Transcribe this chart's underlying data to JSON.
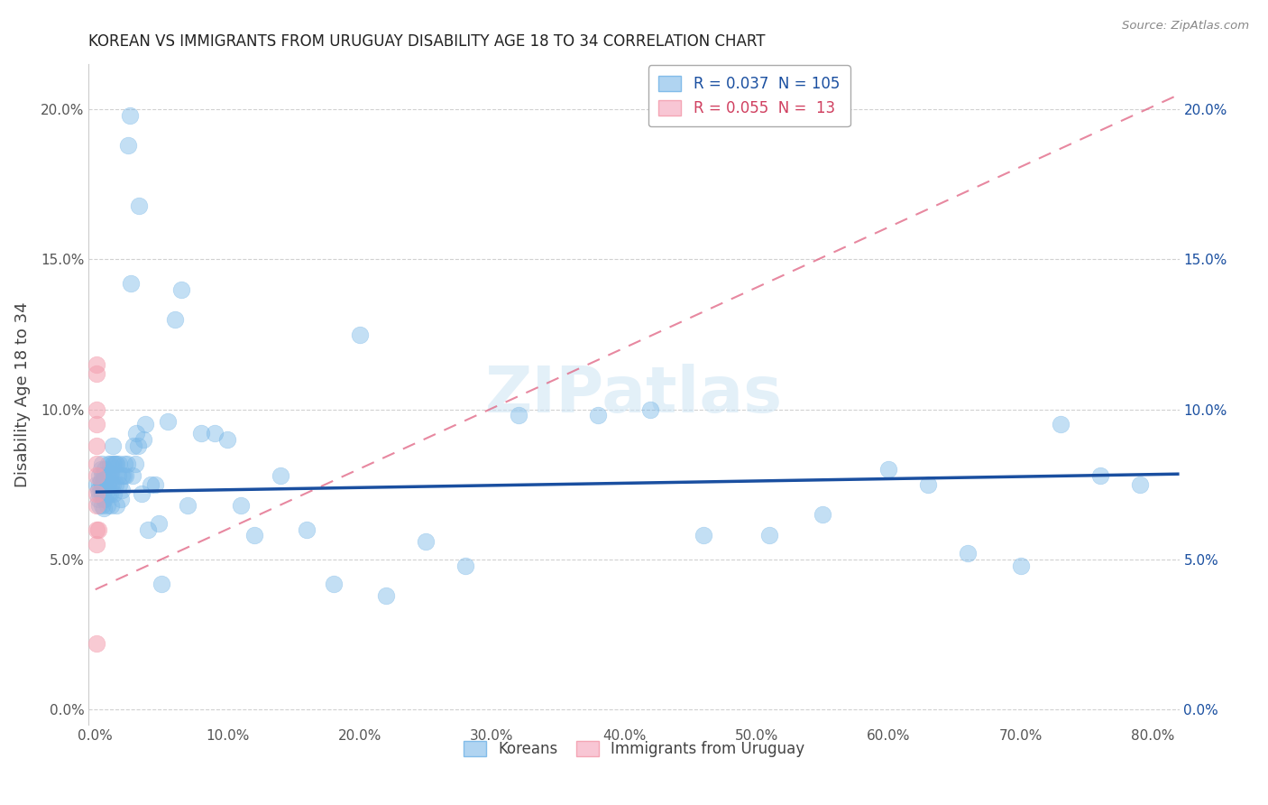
{
  "title": "KOREAN VS IMMIGRANTS FROM URUGUAY DISABILITY AGE 18 TO 34 CORRELATION CHART",
  "source": "Source: ZipAtlas.com",
  "xlim": [
    0.0,
    0.82
  ],
  "ylim": [
    -0.005,
    0.215
  ],
  "ylabel": "Disability Age 18 to 34",
  "korean_color": "#7ab8e8",
  "uruguay_color": "#f4a0b0",
  "korean_line_color": "#1a4fa0",
  "uruguay_line_color": "#e06080",
  "korean_R": 0.037,
  "uruguay_R": 0.055,
  "korean_N": 105,
  "uruguay_N": 13,
  "korean_x": [
    0.001,
    0.002,
    0.002,
    0.003,
    0.003,
    0.003,
    0.003,
    0.004,
    0.004,
    0.004,
    0.005,
    0.005,
    0.005,
    0.005,
    0.005,
    0.006,
    0.006,
    0.006,
    0.006,
    0.006,
    0.007,
    0.007,
    0.007,
    0.007,
    0.008,
    0.008,
    0.008,
    0.009,
    0.009,
    0.009,
    0.01,
    0.01,
    0.01,
    0.01,
    0.011,
    0.011,
    0.011,
    0.012,
    0.012,
    0.012,
    0.013,
    0.013,
    0.013,
    0.014,
    0.014,
    0.015,
    0.015,
    0.016,
    0.016,
    0.017,
    0.018,
    0.018,
    0.019,
    0.02,
    0.02,
    0.021,
    0.022,
    0.023,
    0.024,
    0.025,
    0.026,
    0.027,
    0.028,
    0.029,
    0.03,
    0.031,
    0.032,
    0.033,
    0.035,
    0.036,
    0.038,
    0.04,
    0.042,
    0.045,
    0.048,
    0.05,
    0.055,
    0.06,
    0.065,
    0.07,
    0.08,
    0.09,
    0.1,
    0.11,
    0.12,
    0.14,
    0.16,
    0.18,
    0.2,
    0.22,
    0.25,
    0.28,
    0.32,
    0.38,
    0.42,
    0.46,
    0.51,
    0.55,
    0.6,
    0.63,
    0.66,
    0.7,
    0.73,
    0.76,
    0.79
  ],
  "korean_y": [
    0.075,
    0.073,
    0.07,
    0.078,
    0.075,
    0.072,
    0.068,
    0.08,
    0.076,
    0.073,
    0.082,
    0.078,
    0.075,
    0.072,
    0.068,
    0.078,
    0.075,
    0.073,
    0.07,
    0.067,
    0.08,
    0.077,
    0.073,
    0.07,
    0.078,
    0.075,
    0.072,
    0.078,
    0.075,
    0.068,
    0.082,
    0.079,
    0.075,
    0.072,
    0.082,
    0.078,
    0.072,
    0.079,
    0.075,
    0.068,
    0.088,
    0.082,
    0.075,
    0.082,
    0.072,
    0.082,
    0.075,
    0.082,
    0.068,
    0.078,
    0.082,
    0.075,
    0.07,
    0.078,
    0.073,
    0.078,
    0.082,
    0.078,
    0.082,
    0.188,
    0.198,
    0.142,
    0.078,
    0.088,
    0.082,
    0.092,
    0.088,
    0.168,
    0.072,
    0.09,
    0.095,
    0.06,
    0.075,
    0.075,
    0.062,
    0.042,
    0.096,
    0.13,
    0.14,
    0.068,
    0.092,
    0.092,
    0.09,
    0.068,
    0.058,
    0.078,
    0.06,
    0.042,
    0.125,
    0.038,
    0.056,
    0.048,
    0.098,
    0.098,
    0.1,
    0.058,
    0.058,
    0.065,
    0.08,
    0.075,
    0.052,
    0.048,
    0.095,
    0.078,
    0.075
  ],
  "uruguay_x": [
    0.001,
    0.001,
    0.001,
    0.001,
    0.001,
    0.001,
    0.001,
    0.001,
    0.001,
    0.001,
    0.001,
    0.001,
    0.002
  ],
  "uruguay_y": [
    0.115,
    0.112,
    0.1,
    0.095,
    0.088,
    0.082,
    0.078,
    0.072,
    0.068,
    0.06,
    0.055,
    0.022,
    0.06
  ],
  "korean_trend_x0": 0.0,
  "korean_trend_x1": 0.82,
  "korean_trend_y0": 0.0725,
  "korean_trend_y1": 0.0785,
  "uruguay_trend_x0": 0.0,
  "uruguay_trend_x1": 0.82,
  "uruguay_trend_y0": 0.04,
  "uruguay_trend_y1": 0.205
}
